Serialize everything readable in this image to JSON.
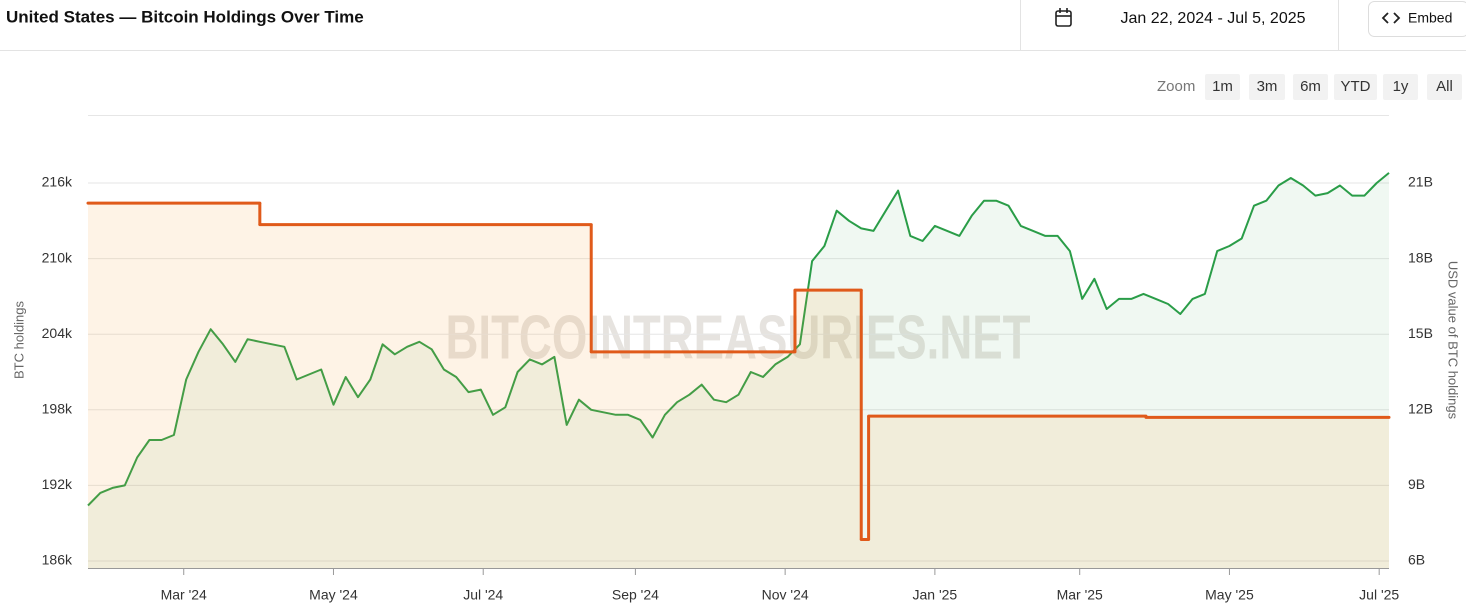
{
  "header": {
    "date_range": "Jan 22, 2024 - Jul 5, 2025",
    "embed_label": "Embed"
  },
  "zoom": {
    "label": "Zoom",
    "buttons": [
      "1m",
      "3m",
      "6m",
      "YTD",
      "1y",
      "All"
    ]
  },
  "watermark": "BITCOINTREASURIES.NET",
  "chart_data": {
    "type": "line",
    "title": "United States — Bitcoin Holdings Over Time",
    "ylabel": "BTC holdings",
    "y2label": "USD value of BTC holdings",
    "xlim": [
      "2024-01-22",
      "2025-07-05"
    ],
    "xticks": [
      {
        "value": "2024-03-01",
        "label": "Mar '24"
      },
      {
        "value": "2024-05-01",
        "label": "May '24"
      },
      {
        "value": "2024-07-01",
        "label": "Jul '24"
      },
      {
        "value": "2024-09-01",
        "label": "Sep '24"
      },
      {
        "value": "2024-11-01",
        "label": "Nov '24"
      },
      {
        "value": "2025-01-01",
        "label": "Jan '25"
      },
      {
        "value": "2025-03-01",
        "label": "Mar '25"
      },
      {
        "value": "2025-05-01",
        "label": "May '25"
      },
      {
        "value": "2025-07-01",
        "label": "Jul '25"
      }
    ],
    "ylim": [
      185440,
      221400
    ],
    "yticks": [
      {
        "value": 186000,
        "label": "186k"
      },
      {
        "value": 192000,
        "label": "192k"
      },
      {
        "value": 198000,
        "label": "198k"
      },
      {
        "value": 204000,
        "label": "204k"
      },
      {
        "value": 210000,
        "label": "210k"
      },
      {
        "value": 216000,
        "label": "216k"
      }
    ],
    "y2lim": [
      5.72,
      23.7
    ],
    "y2ticks": [
      {
        "value": 6,
        "label": "6B"
      },
      {
        "value": 9,
        "label": "9B"
      },
      {
        "value": 12,
        "label": "12B"
      },
      {
        "value": 15,
        "label": "15B"
      },
      {
        "value": 18,
        "label": "18B"
      },
      {
        "value": 21,
        "label": "21B"
      }
    ],
    "grid": true,
    "series": [
      {
        "color": "#e05a1a",
        "fill": "rgba(245,160,60,0.13)",
        "step": "after",
        "axis": "y",
        "x": [
          "2024-01-22",
          "2024-04-01",
          "2024-08-14",
          "2024-11-05",
          "2024-12-02",
          "2024-12-05",
          "2025-03-28"
        ],
        "values": [
          214400,
          212700,
          202600,
          207500,
          187700,
          197500,
          197400
        ]
      },
      {
        "color": "#2a9d48",
        "fill": "rgba(60,170,90,0.08)",
        "axis": "y2",
        "x": [
          "2024-01-22",
          "2024-01-27",
          "2024-02-01",
          "2024-02-06",
          "2024-02-11",
          "2024-02-16",
          "2024-02-21",
          "2024-02-26",
          "2024-03-02",
          "2024-03-07",
          "2024-03-12",
          "2024-03-17",
          "2024-03-22",
          "2024-03-27",
          "2024-04-01",
          "2024-04-06",
          "2024-04-11",
          "2024-04-16",
          "2024-04-21",
          "2024-04-26",
          "2024-05-01",
          "2024-05-06",
          "2024-05-11",
          "2024-05-16",
          "2024-05-21",
          "2024-05-26",
          "2024-05-31",
          "2024-06-05",
          "2024-06-10",
          "2024-06-15",
          "2024-06-20",
          "2024-06-25",
          "2024-06-30",
          "2024-07-05",
          "2024-07-10",
          "2024-07-15",
          "2024-07-20",
          "2024-07-25",
          "2024-07-30",
          "2024-08-04",
          "2024-08-09",
          "2024-08-14",
          "2024-08-19",
          "2024-08-24",
          "2024-08-29",
          "2024-09-03",
          "2024-09-08",
          "2024-09-13",
          "2024-09-18",
          "2024-09-23",
          "2024-09-28",
          "2024-10-03",
          "2024-10-08",
          "2024-10-13",
          "2024-10-18",
          "2024-10-23",
          "2024-10-28",
          "2024-11-02",
          "2024-11-07",
          "2024-11-12",
          "2024-11-17",
          "2024-11-22",
          "2024-11-27",
          "2024-12-02",
          "2024-12-07",
          "2024-12-12",
          "2024-12-17",
          "2024-12-22",
          "2024-12-27",
          "2025-01-01",
          "2025-01-06",
          "2025-01-11",
          "2025-01-16",
          "2025-01-21",
          "2025-01-26",
          "2025-01-31",
          "2025-02-05",
          "2025-02-10",
          "2025-02-15",
          "2025-02-20",
          "2025-02-25",
          "2025-03-02",
          "2025-03-07",
          "2025-03-12",
          "2025-03-17",
          "2025-03-22",
          "2025-03-27",
          "2025-04-01",
          "2025-04-06",
          "2025-04-11",
          "2025-04-16",
          "2025-04-21",
          "2025-04-26",
          "2025-05-01",
          "2025-05-06",
          "2025-05-11",
          "2025-05-16",
          "2025-05-21",
          "2025-05-26",
          "2025-05-31",
          "2025-06-05",
          "2025-06-10",
          "2025-06-15",
          "2025-06-20",
          "2025-06-25",
          "2025-06-30",
          "2025-07-05"
        ],
        "values": [
          8.2,
          8.7,
          8.9,
          9.0,
          10.1,
          10.8,
          10.8,
          11.0,
          13.2,
          14.3,
          15.2,
          14.6,
          13.9,
          14.8,
          14.7,
          14.6,
          14.5,
          13.2,
          13.4,
          13.6,
          12.2,
          13.3,
          12.5,
          13.2,
          14.6,
          14.2,
          14.5,
          14.7,
          14.4,
          13.6,
          13.3,
          12.7,
          12.8,
          11.8,
          12.1,
          13.5,
          14.0,
          13.8,
          14.1,
          11.4,
          12.4,
          12.0,
          11.9,
          11.8,
          11.8,
          11.6,
          10.9,
          11.8,
          12.3,
          12.6,
          13.0,
          12.4,
          12.3,
          12.6,
          13.5,
          13.3,
          13.8,
          14.1,
          14.6,
          17.9,
          18.5,
          19.9,
          19.5,
          19.2,
          19.1,
          19.9,
          20.7,
          18.9,
          18.7,
          19.3,
          19.1,
          18.9,
          19.7,
          20.3,
          20.3,
          20.1,
          19.3,
          19.1,
          18.9,
          18.9,
          18.3,
          16.4,
          17.2,
          16.0,
          16.4,
          16.4,
          16.6,
          16.4,
          16.2,
          15.8,
          16.4,
          16.6,
          18.3,
          18.5,
          18.8,
          20.1,
          20.3,
          20.9,
          21.2,
          20.9,
          20.5,
          20.6,
          20.9,
          20.5,
          20.5,
          21.0,
          21.4
        ]
      }
    ]
  }
}
